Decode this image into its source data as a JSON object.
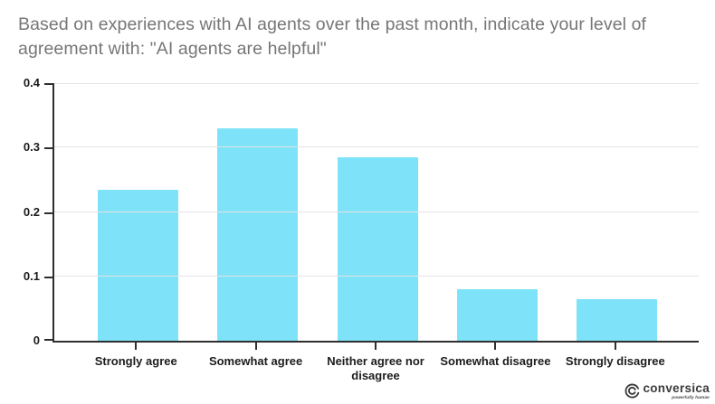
{
  "chart_data": {
    "type": "bar",
    "title": "Based on experiences with AI agents over the past month, indicate your level of agreement with: \"AI agents are helpful\"",
    "categories": [
      "Strongly agree",
      "Somewhat agree",
      "Neither agree nor disagree",
      "Somewhat disagree",
      "Strongly disagree"
    ],
    "values": [
      0.235,
      0.33,
      0.285,
      0.08,
      0.065
    ],
    "xlabel": "",
    "ylabel": "",
    "ylim": [
      0,
      0.4
    ],
    "yticks": [
      0,
      0.1,
      0.2,
      0.3,
      0.4
    ],
    "ytick_labels": [
      "0",
      "0.1",
      "0.2",
      "0.3",
      "0.4"
    ],
    "grid": true,
    "legend": false,
    "bar_color": "#7EE3F9"
  },
  "colors": {
    "bar": "#7EE3F9",
    "axis": "#2E2E2E",
    "grid": "#E3E3E3",
    "tick_text": "#1C1C1C",
    "title_text": "#767676",
    "logo_text": "#3B3B3B"
  },
  "logo": {
    "brand": "conversica",
    "tagline": "powerfully human"
  }
}
